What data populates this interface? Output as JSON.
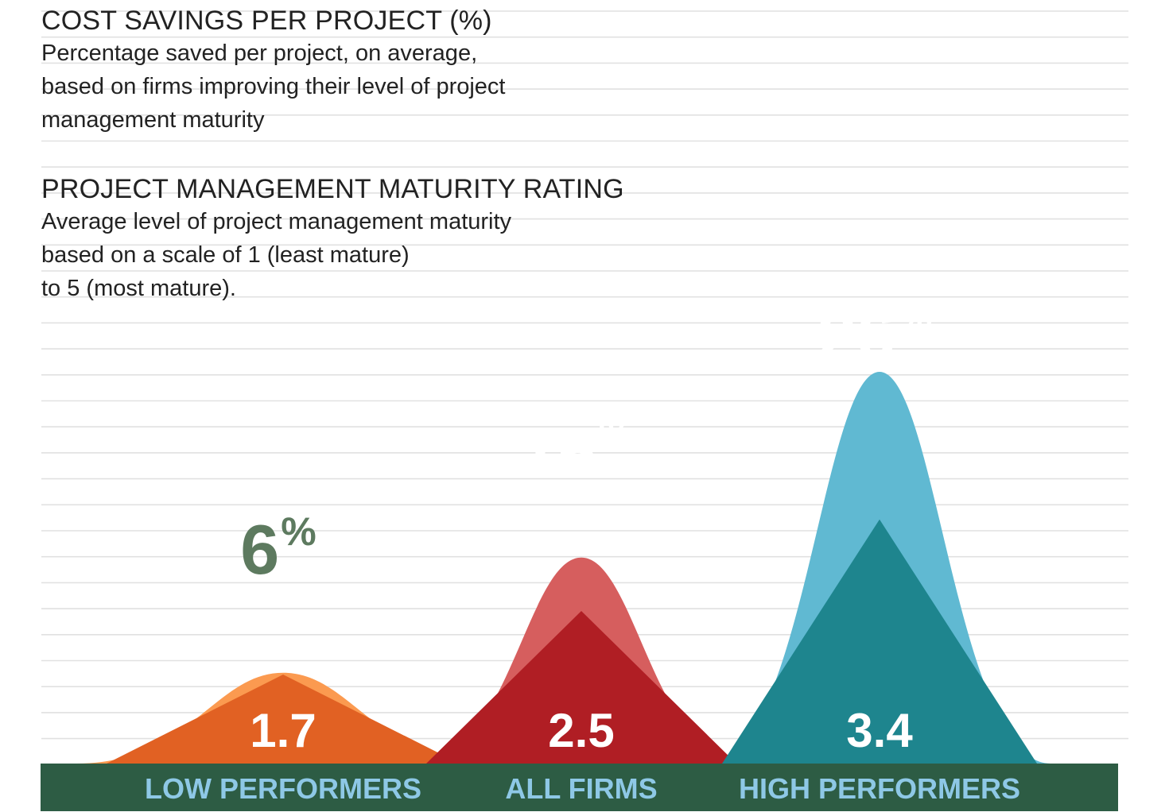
{
  "legend": {
    "savings_title": "COST SAVINGS PER PROJECT (%)",
    "savings_desc": "Percentage saved per project, on average,\nbased on firms improving their level of project\nmanagement maturity",
    "maturity_title": "PROJECT MANAGEMENT MATURITY RATING",
    "maturity_desc": "Average level of project management maturity\nbased on a scale of 1 (least mature)\nto 5 (most mature)."
  },
  "chart_data": {
    "type": "area",
    "categories": [
      "LOW PERFORMERS",
      "ALL FIRMS",
      "HIGH PERFORMERS"
    ],
    "series": [
      {
        "values": [
          6,
          16,
          26
        ],
        "labels": [
          "6",
          "16",
          "26"
        ],
        "unit": "%",
        "colors": [
          "#fb9a50",
          "#d65e5e",
          "#60b9d2"
        ]
      },
      {
        "values": [
          1.7,
          2.5,
          3.4
        ],
        "labels": [
          "1.7",
          "2.5",
          "3.4"
        ],
        "colors": [
          "#e16123",
          "#b01e24",
          "#1e858e"
        ]
      }
    ],
    "label_colors": {
      "savings": [
        "#5d7a5f",
        "#ffffff",
        "#ffffff"
      ],
      "maturity": "#ffffff",
      "category": "#8ec8e6"
    },
    "baseline_color": "#2d5c44",
    "grid": true,
    "grid_color": "#e1e1e1"
  }
}
